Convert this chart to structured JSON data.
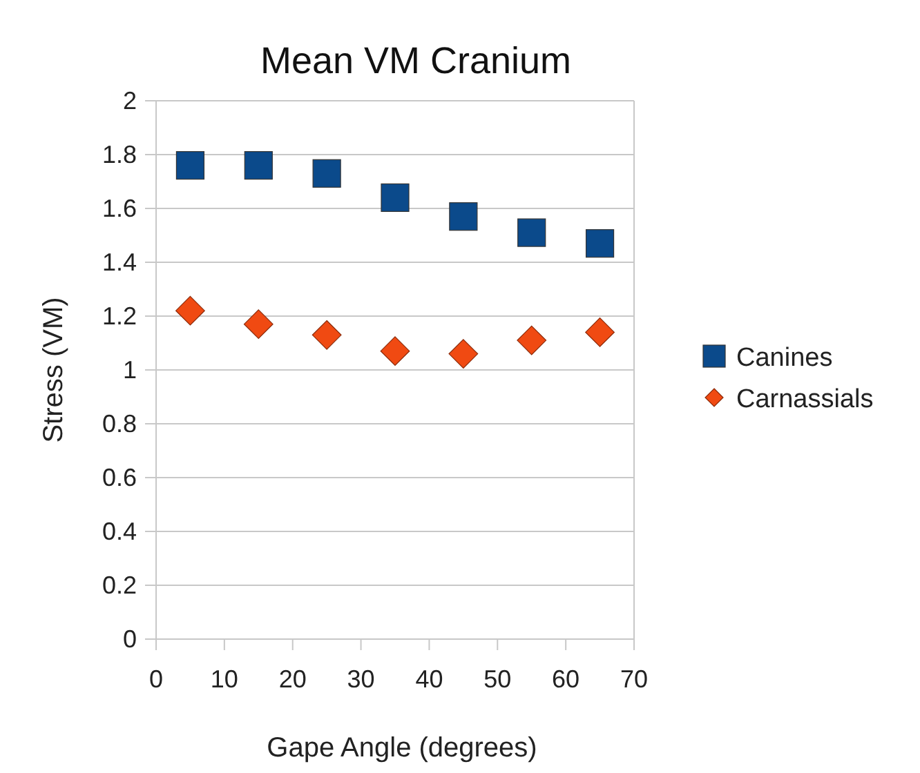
{
  "chart_data": {
    "type": "scatter",
    "title": "Mean VM Cranium",
    "xlabel": "Gape Angle (degrees)",
    "ylabel": "Stress (VM)",
    "x": [
      5,
      15,
      25,
      35,
      45,
      55,
      65
    ],
    "series": [
      {
        "name": "Canines",
        "color": "#0b4a8b",
        "marker": "square",
        "values": [
          1.76,
          1.76,
          1.73,
          1.64,
          1.57,
          1.51,
          1.47
        ]
      },
      {
        "name": "Carnassials",
        "color": "#f04a12",
        "marker": "diamond",
        "values": [
          1.22,
          1.17,
          1.13,
          1.07,
          1.06,
          1.11,
          1.14
        ]
      }
    ],
    "xlim": [
      0,
      70
    ],
    "xticks": [
      0,
      10,
      20,
      30,
      40,
      50,
      60,
      70
    ],
    "ylim": [
      0,
      2
    ],
    "yticks": [
      0,
      0.2,
      0.4,
      0.6,
      0.8,
      1,
      1.2,
      1.4,
      1.6,
      1.8,
      2
    ],
    "grid": "y",
    "legend": "right"
  }
}
